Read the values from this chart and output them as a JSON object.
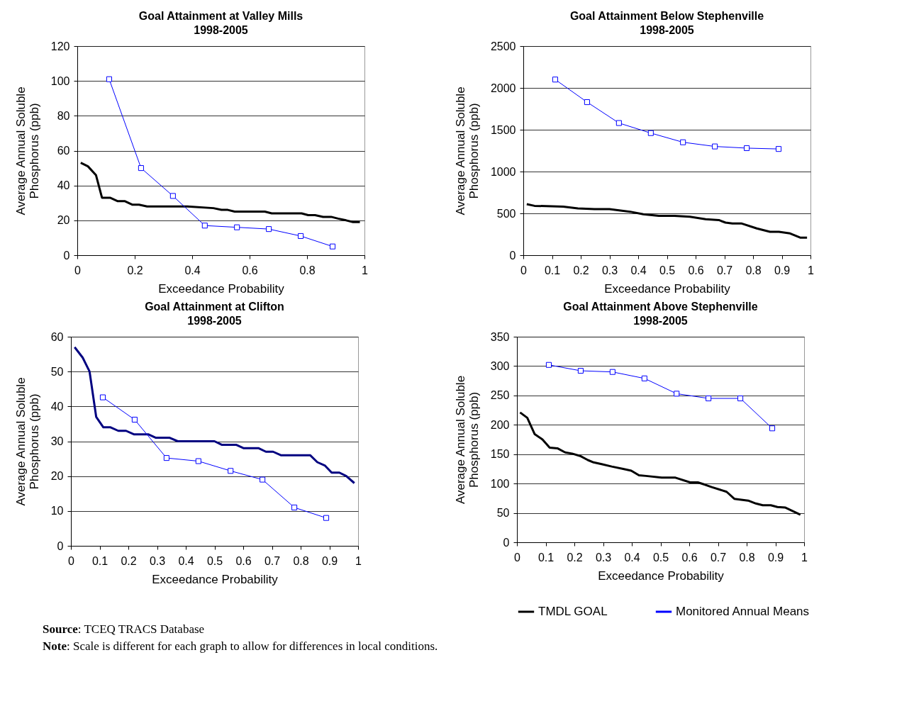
{
  "chart_data": [
    {
      "type": "line",
      "title": "Goal Attainment at Valley Mills",
      "subtitle": "1998-2005",
      "xlabel": "Exceedance Probability",
      "ylabel": "Average Annual Soluble Phosphorus (ppb)",
      "xlim": [
        0,
        1
      ],
      "xticks": [
        0,
        0.2,
        0.4,
        0.6,
        0.8,
        1
      ],
      "ylim": [
        0,
        120
      ],
      "yticks": [
        0,
        20,
        40,
        60,
        80,
        100,
        120
      ],
      "grid": "y",
      "legend": false,
      "series": [
        {
          "color": "#000000",
          "x": [
            0.012,
            0.037,
            0.065,
            0.086,
            0.114,
            0.141,
            0.166,
            0.191,
            0.215,
            0.243,
            0.383,
            0.474,
            0.502,
            0.524,
            0.548,
            0.653,
            0.677,
            0.781,
            0.804,
            0.828,
            0.856,
            0.884,
            0.908,
            0.936,
            0.96,
            0.984
          ],
          "values": [
            53,
            51,
            46,
            33,
            33,
            31,
            31,
            29,
            29,
            28,
            28,
            27,
            26,
            26,
            25,
            25,
            24,
            24,
            23,
            23,
            22,
            22,
            21,
            20,
            19,
            19
          ]
        },
        {
          "color": "#0000ff",
          "marker": "square",
          "x": [
            0.111,
            0.222,
            0.333,
            0.444,
            0.556,
            0.667,
            0.778,
            0.889
          ],
          "values": [
            101,
            50,
            34,
            17,
            16,
            15,
            11,
            5
          ]
        }
      ]
    },
    {
      "type": "line",
      "title": "Goal Attainment Below Stephenville",
      "subtitle": "1998-2005",
      "xlabel": "Exceedance Probability",
      "ylabel": "Average Annual Soluble Phosphorus (ppb)",
      "xlim": [
        0,
        1
      ],
      "xticks": [
        0,
        0.1,
        0.2,
        0.3,
        0.4,
        0.5,
        0.6,
        0.7,
        0.8,
        0.9,
        1
      ],
      "ylim": [
        0,
        2500
      ],
      "yticks": [
        0,
        500,
        1000,
        1500,
        2000,
        2500
      ],
      "grid": "y",
      "legend": false,
      "series": [
        {
          "color": "#000000",
          "x": [
            0.012,
            0.039,
            0.139,
            0.19,
            0.248,
            0.3,
            0.348,
            0.372,
            0.418,
            0.472,
            0.526,
            0.58,
            0.635,
            0.681,
            0.704,
            0.728,
            0.759,
            0.813,
            0.859,
            0.89,
            0.929,
            0.964,
            0.988
          ],
          "values": [
            610,
            590,
            580,
            560,
            550,
            550,
            530,
            520,
            490,
            470,
            470,
            460,
            430,
            420,
            390,
            380,
            380,
            320,
            280,
            280,
            260,
            210,
            210
          ]
        },
        {
          "color": "#0000ff",
          "marker": "square",
          "x": [
            0.111,
            0.222,
            0.333,
            0.444,
            0.556,
            0.667,
            0.778,
            0.889
          ],
          "values": [
            2100,
            1830,
            1580,
            1460,
            1350,
            1300,
            1280,
            1270
          ]
        }
      ]
    },
    {
      "type": "line",
      "title": "Goal Attainment at Clifton",
      "subtitle": "1998-2005",
      "xlabel": "Exceedance Probability",
      "ylabel": "Average Annual Soluble Phosphorus (ppb)",
      "xlim": [
        0,
        1
      ],
      "xticks": [
        0,
        0.1,
        0.2,
        0.3,
        0.4,
        0.5,
        0.6,
        0.7,
        0.8,
        0.9,
        1
      ],
      "ylim": [
        0,
        60
      ],
      "yticks": [
        0,
        10,
        20,
        30,
        40,
        50,
        60
      ],
      "grid": "y",
      "legend": false,
      "series": [
        {
          "color": "#000080",
          "x": [
            0.013,
            0.041,
            0.065,
            0.088,
            0.113,
            0.138,
            0.165,
            0.192,
            0.219,
            0.269,
            0.296,
            0.344,
            0.372,
            0.5,
            0.525,
            0.575,
            0.602,
            0.654,
            0.679,
            0.704,
            0.731,
            0.833,
            0.858,
            0.885,
            0.908,
            0.935,
            0.959,
            0.987
          ],
          "values": [
            57,
            54,
            50,
            37,
            34,
            34,
            33,
            33,
            32,
            32,
            31,
            31,
            30,
            30,
            29,
            29,
            28,
            28,
            27,
            27,
            26,
            26,
            24,
            23,
            21,
            21,
            20,
            18
          ]
        },
        {
          "color": "#0000ff",
          "marker": "square",
          "x": [
            0.111,
            0.222,
            0.333,
            0.444,
            0.556,
            0.667,
            0.778,
            0.889
          ],
          "values": [
            42.6,
            36.2,
            25.2,
            24.3,
            21.5,
            19,
            11,
            8
          ]
        }
      ]
    },
    {
      "type": "line",
      "title": "Goal Attainment Above Stephenville",
      "subtitle": "1998-2005",
      "xlabel": "Exceedance Probability",
      "ylabel": "Average Annual Soluble Phosphorus (ppb)",
      "xlim": [
        0,
        1
      ],
      "xticks": [
        0,
        0.1,
        0.2,
        0.3,
        0.4,
        0.5,
        0.6,
        0.7,
        0.8,
        0.9,
        1
      ],
      "ylim": [
        0,
        350
      ],
      "yticks": [
        0,
        50,
        100,
        150,
        200,
        250,
        300,
        350
      ],
      "grid": "y",
      "legend": "bottom",
      "annotations": [
        "Source: TCEQ TRACS Database",
        "Note: Scale is different for each graph to allow for differences in local conditions."
      ],
      "series": [
        {
          "name": "TMDL GOAL",
          "color": "#000000",
          "x": [
            0.011,
            0.036,
            0.062,
            0.089,
            0.114,
            0.141,
            0.168,
            0.192,
            0.22,
            0.247,
            0.267,
            0.295,
            0.33,
            0.37,
            0.398,
            0.425,
            0.449,
            0.504,
            0.552,
            0.603,
            0.63,
            0.655,
            0.678,
            0.73,
            0.757,
            0.805,
            0.832,
            0.856,
            0.884,
            0.907,
            0.935,
            0.987
          ],
          "values": [
            221,
            212,
            184,
            175,
            161,
            160,
            153,
            151,
            147,
            140,
            136,
            133,
            129,
            125,
            122,
            114,
            113,
            110,
            110,
            102,
            102,
            98,
            94,
            86,
            74,
            71,
            66,
            63,
            63,
            60,
            59,
            47
          ]
        },
        {
          "name": "Monitored Annual Means",
          "color": "#0000ff",
          "marker": "square",
          "x": [
            0.111,
            0.222,
            0.333,
            0.444,
            0.556,
            0.667,
            0.778,
            0.889
          ],
          "values": [
            302,
            292,
            290,
            279,
            253,
            245,
            245,
            194
          ]
        }
      ]
    }
  ]
}
